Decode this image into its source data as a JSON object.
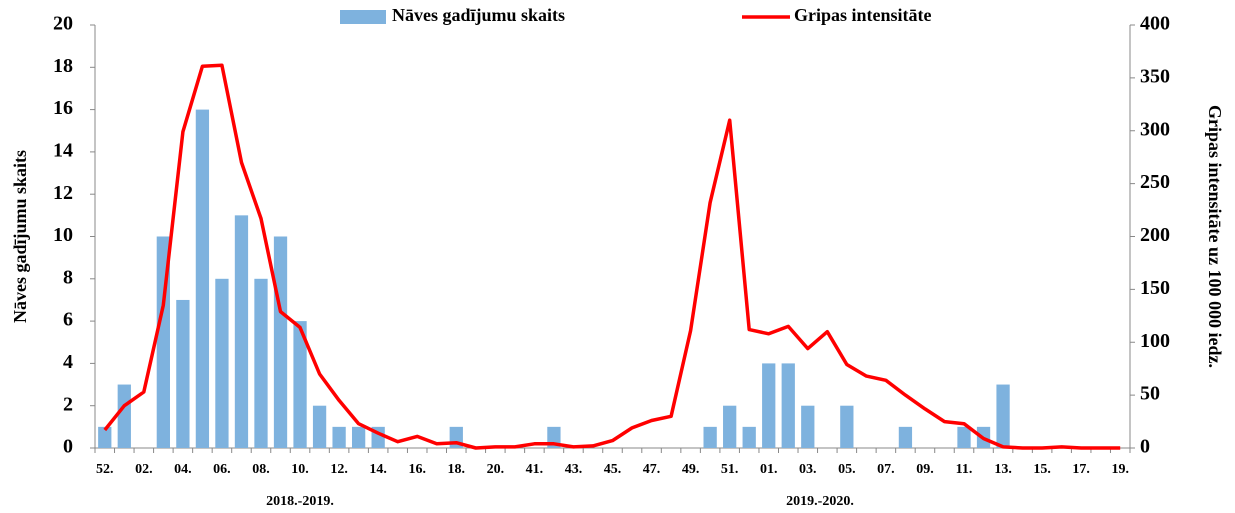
{
  "chart_data": {
    "type": "bar",
    "categories": [
      "52.",
      null,
      "02.",
      null,
      "04.",
      null,
      "06.",
      null,
      "08.",
      null,
      "10.",
      null,
      "12.",
      null,
      "14.",
      null,
      "16.",
      null,
      "18.",
      null,
      "20.",
      null,
      "41.",
      null,
      "43.",
      null,
      "45.",
      null,
      "47.",
      null,
      "49.",
      null,
      "51.",
      null,
      "01.",
      null,
      "03.",
      null,
      "05.",
      null,
      "07.",
      null,
      "09.",
      null,
      "11.",
      null,
      "13.",
      null,
      "15.",
      null,
      "17.",
      null,
      "19."
    ],
    "groups": [
      "2018.-2019.",
      "2019.-2020."
    ],
    "series": [
      {
        "name": "Nāves gadījumu skaits",
        "type": "bar",
        "color": "#7eb2de",
        "values": [
          1,
          3,
          0,
          10,
          7,
          16,
          8,
          11,
          8,
          10,
          6,
          2,
          1,
          1,
          1,
          0,
          0,
          0,
          1,
          0,
          0,
          0,
          0,
          1,
          0,
          0,
          0,
          0,
          0,
          0,
          0,
          1,
          2,
          1,
          4,
          4,
          2,
          0,
          2,
          0,
          0,
          1,
          0,
          0,
          1,
          1,
          3,
          0,
          0,
          0,
          0,
          0,
          0
        ]
      },
      {
        "name": "Gripas intensitāte",
        "type": "line",
        "axis": "y2",
        "color": "#ff0000",
        "values": [
          17,
          40,
          53,
          135,
          299,
          361,
          362,
          270,
          217,
          129,
          114,
          70,
          45,
          23,
          14,
          6,
          11,
          4,
          5,
          0,
          1,
          1,
          4,
          4,
          1,
          2,
          7,
          19,
          26,
          30,
          111,
          232,
          310,
          112,
          108,
          115,
          94,
          110,
          79,
          68,
          64,
          50,
          37,
          25,
          23,
          9,
          1,
          0,
          0,
          1,
          0,
          0,
          0
        ]
      }
    ],
    "ylabel": "Nāves gadījumu skaits",
    "y2label": "Gripas intensitāte uz 100 000 iedz.",
    "ylim": [
      0,
      20
    ],
    "yticks": [
      0,
      2,
      4,
      6,
      8,
      10,
      12,
      14,
      16,
      18,
      20
    ],
    "y2lim": [
      0,
      400
    ],
    "y2ticks": [
      0,
      50,
      100,
      150,
      200,
      250,
      300,
      350,
      400
    ],
    "grid": false,
    "legend": "top"
  }
}
